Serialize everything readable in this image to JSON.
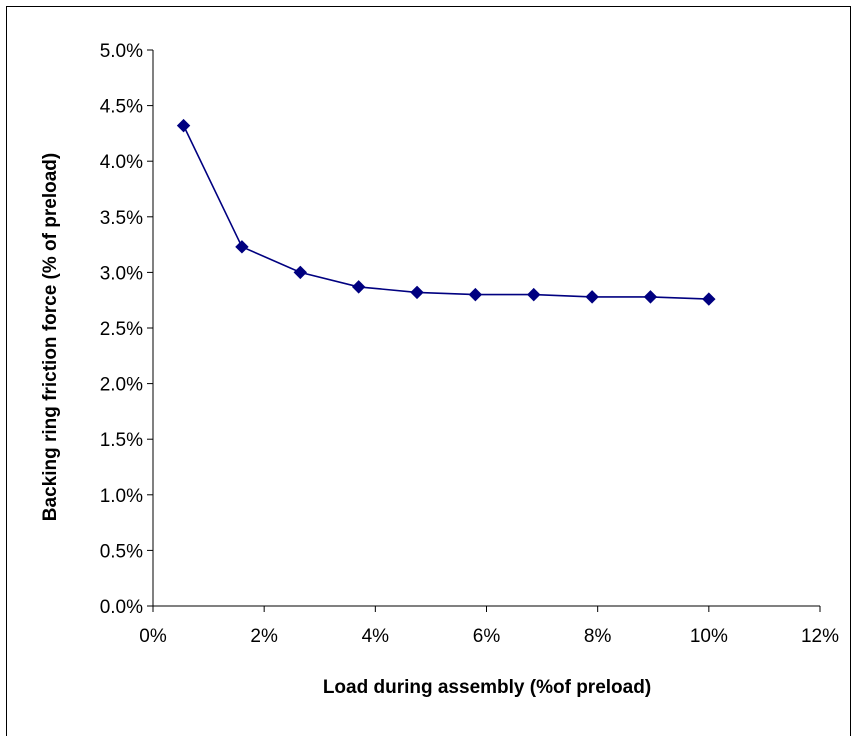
{
  "chart_data": {
    "type": "line",
    "title": "",
    "xlabel": "Load during assembly (%of preload)",
    "ylabel": "Backing ring friction force (% of preload)",
    "xlim": [
      0,
      12
    ],
    "ylim": [
      0,
      5
    ],
    "x_ticks": [
      0,
      2,
      4,
      6,
      8,
      10,
      12
    ],
    "x_tick_labels": [
      "0%",
      "2%",
      "4%",
      "6%",
      "8%",
      "10%",
      "12%"
    ],
    "y_ticks": [
      0,
      0.5,
      1,
      1.5,
      2,
      2.5,
      3,
      3.5,
      4,
      4.5,
      5
    ],
    "y_tick_labels": [
      "0.0%",
      "0.5%",
      "1.0%",
      "1.5%",
      "2.0%",
      "2.5%",
      "3.0%",
      "3.5%",
      "4.0%",
      "4.5%",
      "5.0%"
    ],
    "grid": false,
    "legend": "none",
    "colors": {
      "series": "#000080",
      "axis": "#000000"
    },
    "series": [
      {
        "marker": "diamond",
        "x": [
          0.55,
          1.6,
          2.65,
          3.7,
          4.75,
          5.8,
          6.85,
          7.9,
          8.95,
          10.0
        ],
        "y": [
          4.32,
          3.23,
          3.0,
          2.87,
          2.82,
          2.8,
          2.8,
          2.78,
          2.78,
          2.76
        ]
      }
    ]
  }
}
